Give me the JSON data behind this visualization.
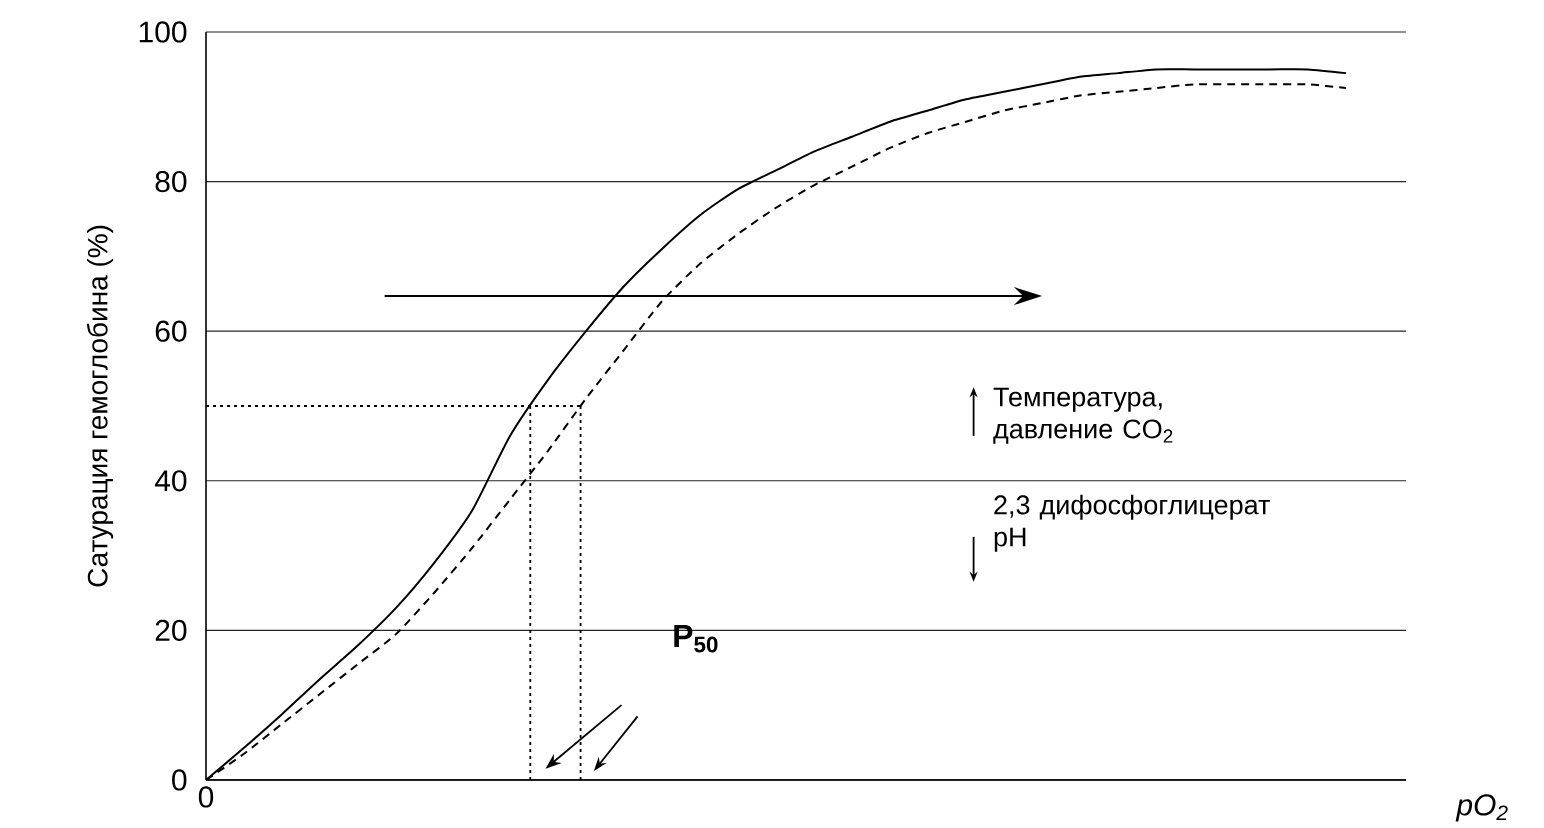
{
  "chart_data": {
    "type": "line",
    "ylabel": "Сатурация гемоглобина (%)",
    "xlabel": "pO$_{2}$",
    "categories": [
      "0",
      null,
      null,
      null,
      null,
      null,
      null,
      null,
      null,
      null,
      null,
      null,
      null,
      null,
      null,
      null,
      null,
      null,
      null,
      null,
      null,
      null,
      null,
      null,
      null,
      null,
      null,
      null,
      null,
      null,
      null
    ],
    "series": [
      {
        "color": "#000000",
        "line_style": "solid",
        "values": [
          0,
          4.3,
          8.8,
          13.5,
          18,
          23,
          29,
          36,
          46,
          53.5,
          60,
          66,
          71,
          75.5,
          79,
          81.5,
          84,
          86,
          88,
          89.5,
          91,
          92,
          93,
          94,
          94.5,
          95,
          95,
          95,
          95,
          95,
          94.5
        ]
      },
      {
        "color": "#000000",
        "line_style": "dashed",
        "values": [
          0,
          3.5,
          7.5,
          11.5,
          15.5,
          19.5,
          25,
          31,
          37.5,
          44,
          51,
          57.5,
          64,
          69,
          73,
          76.5,
          79.5,
          82,
          84.5,
          86.5,
          88,
          89.5,
          90.5,
          91.5,
          92,
          92.5,
          93,
          93,
          93,
          93,
          92.5
        ]
      }
    ],
    "ylim": [
      0,
      100
    ],
    "yticks": [
      0,
      20,
      40,
      60,
      80,
      100
    ],
    "grid": "y",
    "marker": "none",
    "ref_lines": [
      {
        "axis": "y",
        "value": 50,
        "line_style": "dotted"
      }
    ],
    "annotations": [
      "P$_{50}$",
      "Температура, давление CO$_{2}$",
      "2,3 дифосфоглицерат pH"
    ]
  }
}
